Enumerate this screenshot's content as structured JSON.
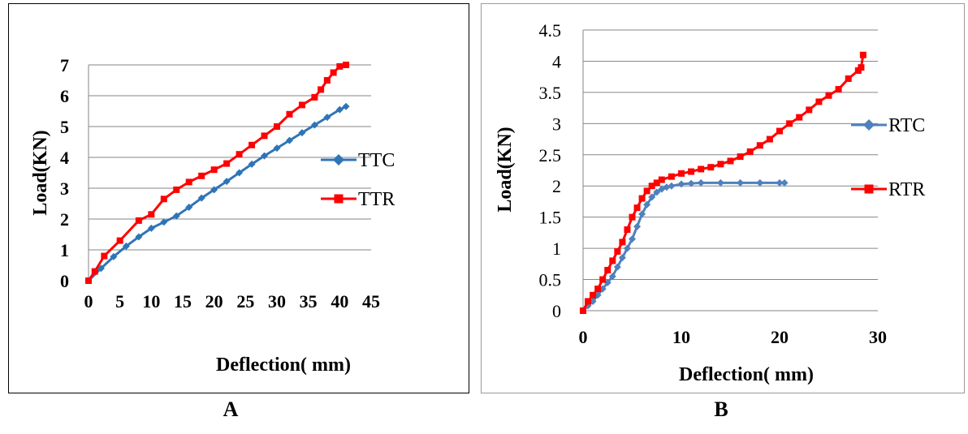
{
  "captions": {
    "a": "A",
    "b": "B"
  },
  "chart_data": [
    {
      "id": "A",
      "type": "line",
      "title": "",
      "xlabel": "Deflection( mm)",
      "ylabel": "Load(KN)",
      "xlim": [
        0,
        45
      ],
      "ylim": [
        0,
        7
      ],
      "xticks": [
        "0",
        "5",
        "10",
        "15",
        "20",
        "25",
        "30",
        "35",
        "40",
        "45"
      ],
      "yticks": [
        "0",
        "1",
        "2",
        "3",
        "4",
        "5",
        "6",
        "7"
      ],
      "grid": "horizontal",
      "legend": "right",
      "series": [
        {
          "name": "TTC",
          "color": "#2e75b6",
          "marker": "diamond",
          "x": [
            0,
            2,
            4,
            6,
            8,
            10,
            12,
            14,
            16,
            18,
            20,
            22,
            24,
            26,
            28,
            30,
            32,
            34,
            36,
            38,
            40,
            41
          ],
          "y": [
            0,
            0.4,
            0.78,
            1.12,
            1.42,
            1.7,
            1.9,
            2.1,
            2.38,
            2.68,
            2.95,
            3.22,
            3.5,
            3.78,
            4.05,
            4.3,
            4.55,
            4.8,
            5.05,
            5.3,
            5.55,
            5.65
          ]
        },
        {
          "name": "TTR",
          "color": "#ff0000",
          "marker": "square",
          "x": [
            0,
            1,
            2.5,
            5,
            8,
            10,
            12,
            14,
            16,
            18,
            20,
            22,
            24,
            26,
            28,
            30,
            32,
            34,
            36,
            37,
            38,
            39,
            40,
            41
          ],
          "y": [
            0,
            0.3,
            0.8,
            1.3,
            1.95,
            2.15,
            2.65,
            2.95,
            3.2,
            3.4,
            3.6,
            3.8,
            4.1,
            4.4,
            4.7,
            5.0,
            5.4,
            5.7,
            5.95,
            6.2,
            6.5,
            6.75,
            6.95,
            7.0
          ]
        }
      ]
    },
    {
      "id": "B",
      "type": "line",
      "title": "",
      "xlabel": "Deflection( mm)",
      "ylabel": "Load(KN)",
      "xlim": [
        0,
        30
      ],
      "ylim": [
        0,
        4.5
      ],
      "xticks": [
        "0",
        "10",
        "20",
        "30"
      ],
      "yticks": [
        "0",
        "0.5",
        "1",
        "1.5",
        "2",
        "2.5",
        "3",
        "3.5",
        "4",
        "4.5"
      ],
      "grid": "horizontal",
      "legend": "right",
      "series": [
        {
          "name": "RTC",
          "color": "#4f81bd",
          "marker": "diamond",
          "x": [
            0,
            0.5,
            1,
            1.5,
            2,
            2.5,
            3,
            3.5,
            4,
            4.5,
            5,
            5.5,
            6,
            6.5,
            7,
            7.5,
            8,
            8.5,
            9,
            10,
            11,
            12,
            14,
            16,
            18,
            20,
            20.5
          ],
          "y": [
            0,
            0.08,
            0.15,
            0.25,
            0.35,
            0.45,
            0.55,
            0.7,
            0.85,
            1.0,
            1.15,
            1.35,
            1.55,
            1.7,
            1.82,
            1.9,
            1.95,
            1.98,
            2.0,
            2.03,
            2.04,
            2.05,
            2.05,
            2.05,
            2.05,
            2.05,
            2.05
          ]
        },
        {
          "name": "RTR",
          "color": "#ff0000",
          "marker": "square",
          "x": [
            0,
            0.5,
            1,
            1.5,
            2,
            2.5,
            3,
            3.5,
            4,
            4.5,
            5,
            5.5,
            6,
            6.5,
            7,
            7.5,
            8,
            9,
            10,
            11,
            12,
            13,
            14,
            15,
            16,
            17,
            18,
            19,
            20,
            21,
            22,
            23,
            24,
            25,
            26,
            27,
            28,
            28.3,
            28.5
          ],
          "y": [
            0,
            0.15,
            0.25,
            0.35,
            0.5,
            0.65,
            0.8,
            0.95,
            1.1,
            1.3,
            1.5,
            1.65,
            1.8,
            1.92,
            2.0,
            2.05,
            2.1,
            2.15,
            2.2,
            2.23,
            2.27,
            2.3,
            2.35,
            2.4,
            2.47,
            2.55,
            2.65,
            2.75,
            2.88,
            3.0,
            3.1,
            3.22,
            3.35,
            3.45,
            3.55,
            3.72,
            3.85,
            3.9,
            4.1
          ]
        }
      ]
    }
  ]
}
